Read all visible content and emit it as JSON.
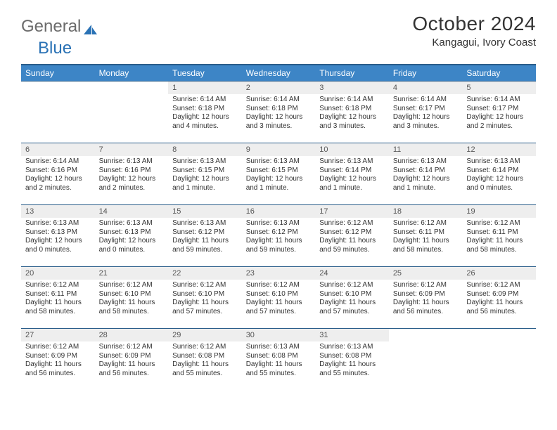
{
  "logo": {
    "word1": "General",
    "word2": "Blue"
  },
  "colors": {
    "header_bg": "#3d85c6",
    "header_border": "#2a5d8a",
    "daynum_bg": "#eeeeee",
    "text": "#333333",
    "logo_gray": "#6b6b6b",
    "logo_blue": "#2a72b5"
  },
  "title": "October 2024",
  "location": "Kangagui, Ivory Coast",
  "weekdays": [
    "Sunday",
    "Monday",
    "Tuesday",
    "Wednesday",
    "Thursday",
    "Friday",
    "Saturday"
  ],
  "weeks": [
    [
      {
        "num": "",
        "lines": [
          "",
          "",
          "",
          ""
        ],
        "empty": true
      },
      {
        "num": "",
        "lines": [
          "",
          "",
          "",
          ""
        ],
        "empty": true
      },
      {
        "num": "1",
        "lines": [
          "Sunrise: 6:14 AM",
          "Sunset: 6:18 PM",
          "Daylight: 12 hours",
          "and 4 minutes."
        ]
      },
      {
        "num": "2",
        "lines": [
          "Sunrise: 6:14 AM",
          "Sunset: 6:18 PM",
          "Daylight: 12 hours",
          "and 3 minutes."
        ]
      },
      {
        "num": "3",
        "lines": [
          "Sunrise: 6:14 AM",
          "Sunset: 6:18 PM",
          "Daylight: 12 hours",
          "and 3 minutes."
        ]
      },
      {
        "num": "4",
        "lines": [
          "Sunrise: 6:14 AM",
          "Sunset: 6:17 PM",
          "Daylight: 12 hours",
          "and 3 minutes."
        ]
      },
      {
        "num": "5",
        "lines": [
          "Sunrise: 6:14 AM",
          "Sunset: 6:17 PM",
          "Daylight: 12 hours",
          "and 2 minutes."
        ]
      }
    ],
    [
      {
        "num": "6",
        "lines": [
          "Sunrise: 6:14 AM",
          "Sunset: 6:16 PM",
          "Daylight: 12 hours",
          "and 2 minutes."
        ]
      },
      {
        "num": "7",
        "lines": [
          "Sunrise: 6:13 AM",
          "Sunset: 6:16 PM",
          "Daylight: 12 hours",
          "and 2 minutes."
        ]
      },
      {
        "num": "8",
        "lines": [
          "Sunrise: 6:13 AM",
          "Sunset: 6:15 PM",
          "Daylight: 12 hours",
          "and 1 minute."
        ]
      },
      {
        "num": "9",
        "lines": [
          "Sunrise: 6:13 AM",
          "Sunset: 6:15 PM",
          "Daylight: 12 hours",
          "and 1 minute."
        ]
      },
      {
        "num": "10",
        "lines": [
          "Sunrise: 6:13 AM",
          "Sunset: 6:14 PM",
          "Daylight: 12 hours",
          "and 1 minute."
        ]
      },
      {
        "num": "11",
        "lines": [
          "Sunrise: 6:13 AM",
          "Sunset: 6:14 PM",
          "Daylight: 12 hours",
          "and 1 minute."
        ]
      },
      {
        "num": "12",
        "lines": [
          "Sunrise: 6:13 AM",
          "Sunset: 6:14 PM",
          "Daylight: 12 hours",
          "and 0 minutes."
        ]
      }
    ],
    [
      {
        "num": "13",
        "lines": [
          "Sunrise: 6:13 AM",
          "Sunset: 6:13 PM",
          "Daylight: 12 hours",
          "and 0 minutes."
        ]
      },
      {
        "num": "14",
        "lines": [
          "Sunrise: 6:13 AM",
          "Sunset: 6:13 PM",
          "Daylight: 12 hours",
          "and 0 minutes."
        ]
      },
      {
        "num": "15",
        "lines": [
          "Sunrise: 6:13 AM",
          "Sunset: 6:12 PM",
          "Daylight: 11 hours",
          "and 59 minutes."
        ]
      },
      {
        "num": "16",
        "lines": [
          "Sunrise: 6:13 AM",
          "Sunset: 6:12 PM",
          "Daylight: 11 hours",
          "and 59 minutes."
        ]
      },
      {
        "num": "17",
        "lines": [
          "Sunrise: 6:12 AM",
          "Sunset: 6:12 PM",
          "Daylight: 11 hours",
          "and 59 minutes."
        ]
      },
      {
        "num": "18",
        "lines": [
          "Sunrise: 6:12 AM",
          "Sunset: 6:11 PM",
          "Daylight: 11 hours",
          "and 58 minutes."
        ]
      },
      {
        "num": "19",
        "lines": [
          "Sunrise: 6:12 AM",
          "Sunset: 6:11 PM",
          "Daylight: 11 hours",
          "and 58 minutes."
        ]
      }
    ],
    [
      {
        "num": "20",
        "lines": [
          "Sunrise: 6:12 AM",
          "Sunset: 6:11 PM",
          "Daylight: 11 hours",
          "and 58 minutes."
        ]
      },
      {
        "num": "21",
        "lines": [
          "Sunrise: 6:12 AM",
          "Sunset: 6:10 PM",
          "Daylight: 11 hours",
          "and 58 minutes."
        ]
      },
      {
        "num": "22",
        "lines": [
          "Sunrise: 6:12 AM",
          "Sunset: 6:10 PM",
          "Daylight: 11 hours",
          "and 57 minutes."
        ]
      },
      {
        "num": "23",
        "lines": [
          "Sunrise: 6:12 AM",
          "Sunset: 6:10 PM",
          "Daylight: 11 hours",
          "and 57 minutes."
        ]
      },
      {
        "num": "24",
        "lines": [
          "Sunrise: 6:12 AM",
          "Sunset: 6:10 PM",
          "Daylight: 11 hours",
          "and 57 minutes."
        ]
      },
      {
        "num": "25",
        "lines": [
          "Sunrise: 6:12 AM",
          "Sunset: 6:09 PM",
          "Daylight: 11 hours",
          "and 56 minutes."
        ]
      },
      {
        "num": "26",
        "lines": [
          "Sunrise: 6:12 AM",
          "Sunset: 6:09 PM",
          "Daylight: 11 hours",
          "and 56 minutes."
        ]
      }
    ],
    [
      {
        "num": "27",
        "lines": [
          "Sunrise: 6:12 AM",
          "Sunset: 6:09 PM",
          "Daylight: 11 hours",
          "and 56 minutes."
        ]
      },
      {
        "num": "28",
        "lines": [
          "Sunrise: 6:12 AM",
          "Sunset: 6:09 PM",
          "Daylight: 11 hours",
          "and 56 minutes."
        ]
      },
      {
        "num": "29",
        "lines": [
          "Sunrise: 6:12 AM",
          "Sunset: 6:08 PM",
          "Daylight: 11 hours",
          "and 55 minutes."
        ]
      },
      {
        "num": "30",
        "lines": [
          "Sunrise: 6:13 AM",
          "Sunset: 6:08 PM",
          "Daylight: 11 hours",
          "and 55 minutes."
        ]
      },
      {
        "num": "31",
        "lines": [
          "Sunrise: 6:13 AM",
          "Sunset: 6:08 PM",
          "Daylight: 11 hours",
          "and 55 minutes."
        ]
      },
      {
        "num": "",
        "lines": [
          "",
          "",
          "",
          ""
        ],
        "empty": true
      },
      {
        "num": "",
        "lines": [
          "",
          "",
          "",
          ""
        ],
        "empty": true
      }
    ]
  ]
}
